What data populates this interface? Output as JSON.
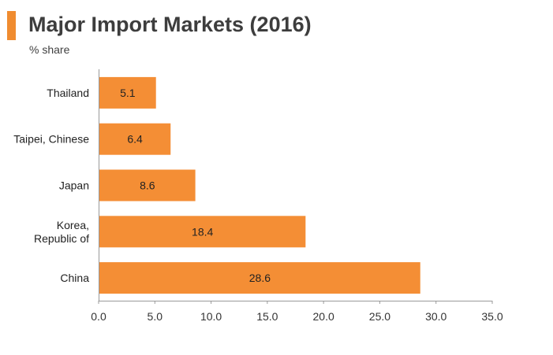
{
  "title": "Major Import Markets (2016)",
  "subtitle": "% share",
  "colors": {
    "accent": "#f08c30",
    "bar": "#f48e35",
    "axis": "#999999"
  },
  "chart_data": {
    "type": "bar",
    "orientation": "horizontal",
    "categories": [
      [
        "Thailand"
      ],
      [
        "Taipei, Chinese"
      ],
      [
        "Japan"
      ],
      [
        "Korea,",
        "Republic of"
      ],
      [
        "China"
      ]
    ],
    "values": [
      5.1,
      6.4,
      8.6,
      18.4,
      28.6
    ],
    "data_labels": [
      "5.1",
      "6.4",
      "8.6",
      "18.4",
      "28.6"
    ],
    "xlim": [
      0,
      35
    ],
    "xticks": [
      0,
      5,
      10,
      15,
      20,
      25,
      30,
      35
    ],
    "xtick_labels": [
      "0.0",
      "5.0",
      "10.0",
      "15.0",
      "20.0",
      "25.0",
      "30.0",
      "35.0"
    ],
    "grid": false,
    "legend": "none"
  }
}
